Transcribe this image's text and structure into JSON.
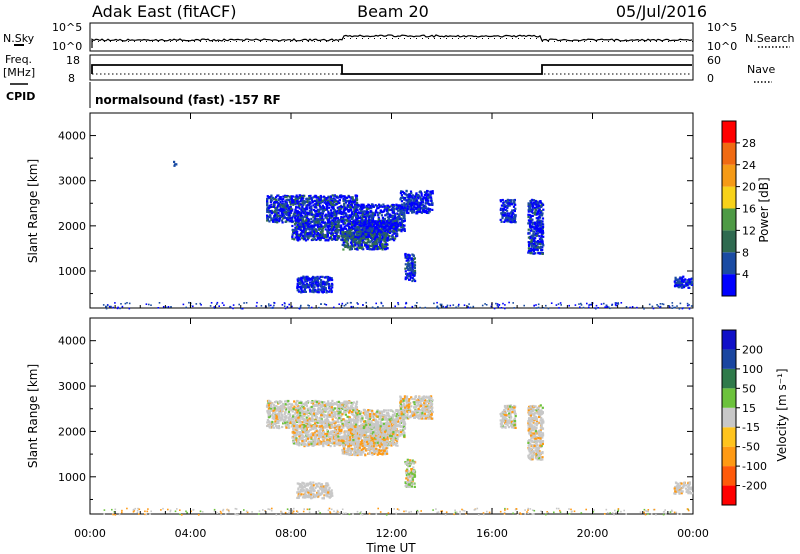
{
  "header": {
    "radar": "Adak East (fitACF)",
    "beam": "Beam 20",
    "date": "05/Jul/2016"
  },
  "info_panel": {
    "nsky_label": "N.Sky",
    "nsearch_label": "N.Search",
    "freq_label_1": "Freq.",
    "freq_label_2": "[MHz]",
    "nave_label": "Nave",
    "cpid_label": "CPID",
    "cpid_text": "normalsound (fast) -157 RF",
    "nsky_ticks": [
      "10^5",
      "10^0"
    ],
    "nsearch_ticks": [
      "10^5",
      "10^0"
    ],
    "freq_ticks": [
      "18",
      "8"
    ],
    "nave_ticks": [
      "60",
      "0"
    ]
  },
  "colors": {
    "power": [
      "#0000ff",
      "#1a4ba3",
      "#2f6a50",
      "#4e9a45",
      "#f7d21a",
      "#f59a16",
      "#f06a12",
      "#ff0000"
    ],
    "velocity": [
      "#ff0000",
      "#ff5a0a",
      "#ff9a14",
      "#ffc41e",
      "#c8c8c8",
      "#6cc23c",
      "#2f7a4a",
      "#1a46a0",
      "#1010c8"
    ]
  },
  "chart_data": [
    {
      "type": "heatmap",
      "name": "power",
      "ylabel": "Slant Range [km]",
      "colorbar_label": "Power [dB]",
      "colorbar_ticks": [
        "28",
        "24",
        "20",
        "16",
        "12",
        "8",
        "4"
      ],
      "y_ticks": [
        "4000",
        "3000",
        "2000",
        "1000"
      ],
      "xlim": [
        0,
        24
      ],
      "ylim": [
        180,
        4500
      ],
      "clouds": [
        {
          "t0": 7.0,
          "t1": 10.6,
          "r0": 2100,
          "r1": 2700,
          "mix": [
            0.25,
            0.55,
            0.2,
            0.0
          ]
        },
        {
          "t0": 8.0,
          "t1": 12.2,
          "r0": 1700,
          "r1": 2150,
          "mix": [
            0.2,
            0.5,
            0.3,
            0.0
          ]
        },
        {
          "t0": 10.0,
          "t1": 11.8,
          "r0": 1500,
          "r1": 1900,
          "mix": [
            0.1,
            0.4,
            0.45,
            0.05
          ]
        },
        {
          "t0": 10.5,
          "t1": 12.5,
          "r0": 1900,
          "r1": 2500,
          "mix": [
            0.3,
            0.6,
            0.1,
            0.0
          ]
        },
        {
          "t0": 12.3,
          "t1": 13.6,
          "r0": 2300,
          "r1": 2800,
          "mix": [
            0.5,
            0.5,
            0.0,
            0.0
          ]
        },
        {
          "t0": 12.5,
          "t1": 12.9,
          "r0": 800,
          "r1": 1400,
          "mix": [
            0.4,
            0.5,
            0.1,
            0.0
          ]
        },
        {
          "t0": 8.2,
          "t1": 9.6,
          "r0": 550,
          "r1": 900,
          "mix": [
            0.4,
            0.6,
            0.0,
            0.0
          ]
        },
        {
          "t0": 16.3,
          "t1": 16.9,
          "r0": 2100,
          "r1": 2600,
          "mix": [
            0.5,
            0.5,
            0.0,
            0.0
          ]
        },
        {
          "t0": 17.4,
          "t1": 18.0,
          "r0": 1400,
          "r1": 2600,
          "mix": [
            0.4,
            0.5,
            0.1,
            0.0
          ]
        },
        {
          "t0": 23.2,
          "t1": 24.0,
          "r0": 650,
          "r1": 900,
          "mix": [
            0.5,
            0.5,
            0.0,
            0.0
          ]
        },
        {
          "t0": 3.3,
          "t1": 3.4,
          "r0": 3350,
          "r1": 3450,
          "mix": [
            1.0,
            0.0,
            0.0,
            0.0
          ]
        }
      ],
      "ground": {
        "t0": 0.5,
        "t1": 24.0,
        "r0": 180,
        "r1": 320
      }
    },
    {
      "type": "heatmap",
      "name": "velocity",
      "ylabel": "Slant Range [km]",
      "colorbar_label": "Velocity [m s⁻¹]",
      "colorbar_ticks": [
        "200",
        "100",
        "50",
        "15",
        "-15",
        "-50",
        "-100",
        "-200"
      ],
      "y_ticks": [
        "4000",
        "3000",
        "2000",
        "1000"
      ],
      "x_ticks": [
        "00:00",
        "04:00",
        "08:00",
        "12:00",
        "16:00",
        "20:00",
        "00:00"
      ],
      "xlabel": "Time UT",
      "xlim": [
        0,
        24
      ],
      "ylim": [
        180,
        4500
      ],
      "clouds": [
        {
          "t0": 7.0,
          "t1": 10.6,
          "r0": 2100,
          "r1": 2700,
          "mix": [
            0.8,
            0.1,
            0.1
          ]
        },
        {
          "t0": 8.0,
          "t1": 12.2,
          "r0": 1700,
          "r1": 2150,
          "mix": [
            0.75,
            0.2,
            0.05
          ]
        },
        {
          "t0": 10.0,
          "t1": 11.8,
          "r0": 1500,
          "r1": 1900,
          "mix": [
            0.6,
            0.35,
            0.05
          ]
        },
        {
          "t0": 10.5,
          "t1": 12.5,
          "r0": 1900,
          "r1": 2500,
          "mix": [
            0.8,
            0.1,
            0.1
          ]
        },
        {
          "t0": 12.3,
          "t1": 13.6,
          "r0": 2300,
          "r1": 2800,
          "mix": [
            0.7,
            0.2,
            0.1
          ]
        },
        {
          "t0": 12.5,
          "t1": 12.9,
          "r0": 800,
          "r1": 1400,
          "mix": [
            0.5,
            0.1,
            0.4
          ]
        },
        {
          "t0": 8.2,
          "t1": 9.6,
          "r0": 550,
          "r1": 900,
          "mix": [
            0.9,
            0.1,
            0.0
          ]
        },
        {
          "t0": 16.3,
          "t1": 16.9,
          "r0": 2100,
          "r1": 2600,
          "mix": [
            0.8,
            0.1,
            0.1
          ]
        },
        {
          "t0": 17.4,
          "t1": 18.0,
          "r0": 1400,
          "r1": 2600,
          "mix": [
            0.8,
            0.15,
            0.05
          ]
        },
        {
          "t0": 23.2,
          "t1": 24.0,
          "r0": 650,
          "r1": 900,
          "mix": [
            0.9,
            0.1,
            0.0
          ]
        }
      ],
      "ground": {
        "t0": 0.5,
        "t1": 24.0,
        "r0": 180,
        "r1": 320
      }
    }
  ]
}
